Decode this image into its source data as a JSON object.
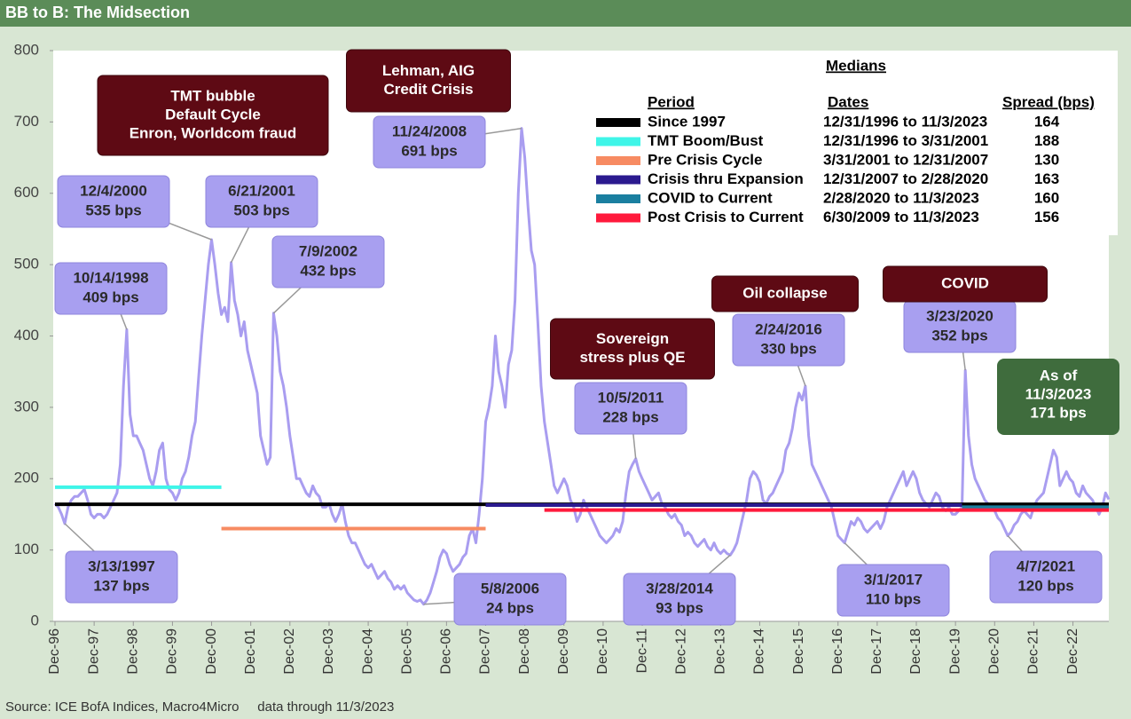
{
  "chart_data": {
    "type": "line",
    "title": "BB to B: The Midsection",
    "source": "Source: ICE BofA Indices, Macro4Micro     data through 11/3/2023",
    "xlim": [
      "1996-12",
      "2023-11"
    ],
    "xticks": [
      {
        "value": "1996-12",
        "label": "Dec-96"
      },
      {
        "value": "1997-12",
        "label": "Dec-97"
      },
      {
        "value": "1998-12",
        "label": "Dec-98"
      },
      {
        "value": "1999-12",
        "label": "Dec-99"
      },
      {
        "value": "2000-12",
        "label": "Dec-00"
      },
      {
        "value": "2001-12",
        "label": "Dec-01"
      },
      {
        "value": "2002-12",
        "label": "Dec-02"
      },
      {
        "value": "2003-12",
        "label": "Dec-03"
      },
      {
        "value": "2004-12",
        "label": "Dec-04"
      },
      {
        "value": "2005-12",
        "label": "Dec-05"
      },
      {
        "value": "2006-12",
        "label": "Dec-06"
      },
      {
        "value": "2007-12",
        "label": "Dec-07"
      },
      {
        "value": "2008-12",
        "label": "Dec-08"
      },
      {
        "value": "2009-12",
        "label": "Dec-09"
      },
      {
        "value": "2010-12",
        "label": "Dec-10"
      },
      {
        "value": "2011-12",
        "label": "Dec-11"
      },
      {
        "value": "2012-12",
        "label": "Dec-12"
      },
      {
        "value": "2013-12",
        "label": "Dec-13"
      },
      {
        "value": "2014-12",
        "label": "Dec-14"
      },
      {
        "value": "2015-12",
        "label": "Dec-15"
      },
      {
        "value": "2016-12",
        "label": "Dec-16"
      },
      {
        "value": "2017-12",
        "label": "Dec-17"
      },
      {
        "value": "2018-12",
        "label": "Dec-18"
      },
      {
        "value": "2019-12",
        "label": "Dec-19"
      },
      {
        "value": "2020-12",
        "label": "Dec-20"
      },
      {
        "value": "2021-12",
        "label": "Dec-21"
      },
      {
        "value": "2022-12",
        "label": "Dec-22"
      }
    ],
    "ylim": [
      0,
      800
    ],
    "yticks": [
      0,
      100,
      200,
      300,
      400,
      500,
      600,
      700,
      800
    ],
    "x": [
      "1996-12",
      "1997-01",
      "1997-02",
      "1997-03",
      "1997-04",
      "1997-05",
      "1997-06",
      "1997-07",
      "1997-08",
      "1997-09",
      "1997-10",
      "1997-11",
      "1997-12",
      "1998-01",
      "1998-02",
      "1998-03",
      "1998-04",
      "1998-05",
      "1998-06",
      "1998-07",
      "1998-08",
      "1998-09",
      "1998-10",
      "1998-11",
      "1998-12",
      "1999-01",
      "1999-02",
      "1999-03",
      "1999-04",
      "1999-05",
      "1999-06",
      "1999-07",
      "1999-08",
      "1999-09",
      "1999-10",
      "1999-11",
      "1999-12",
      "2000-01",
      "2000-02",
      "2000-03",
      "2000-04",
      "2000-05",
      "2000-06",
      "2000-07",
      "2000-08",
      "2000-09",
      "2000-10",
      "2000-11",
      "2000-12",
      "2001-01",
      "2001-02",
      "2001-03",
      "2001-04",
      "2001-05",
      "2001-06",
      "2001-07",
      "2001-08",
      "2001-09",
      "2001-10",
      "2001-11",
      "2001-12",
      "2002-01",
      "2002-02",
      "2002-03",
      "2002-04",
      "2002-05",
      "2002-06",
      "2002-07",
      "2002-08",
      "2002-09",
      "2002-10",
      "2002-11",
      "2002-12",
      "2003-01",
      "2003-02",
      "2003-03",
      "2003-04",
      "2003-05",
      "2003-06",
      "2003-07",
      "2003-08",
      "2003-09",
      "2003-10",
      "2003-11",
      "2003-12",
      "2004-01",
      "2004-02",
      "2004-03",
      "2004-04",
      "2004-05",
      "2004-06",
      "2004-07",
      "2004-08",
      "2004-09",
      "2004-10",
      "2004-11",
      "2004-12",
      "2005-01",
      "2005-02",
      "2005-03",
      "2005-04",
      "2005-05",
      "2005-06",
      "2005-07",
      "2005-08",
      "2005-09",
      "2005-10",
      "2005-11",
      "2005-12",
      "2006-01",
      "2006-02",
      "2006-03",
      "2006-04",
      "2006-05",
      "2006-06",
      "2006-07",
      "2006-08",
      "2006-09",
      "2006-10",
      "2006-11",
      "2006-12",
      "2007-01",
      "2007-02",
      "2007-03",
      "2007-04",
      "2007-05",
      "2007-06",
      "2007-07",
      "2007-08",
      "2007-09",
      "2007-10",
      "2007-11",
      "2007-12",
      "2008-01",
      "2008-02",
      "2008-03",
      "2008-04",
      "2008-05",
      "2008-06",
      "2008-07",
      "2008-08",
      "2008-09",
      "2008-10",
      "2008-11",
      "2008-12",
      "2009-01",
      "2009-02",
      "2009-03",
      "2009-04",
      "2009-05",
      "2009-06",
      "2009-07",
      "2009-08",
      "2009-09",
      "2009-10",
      "2009-11",
      "2009-12",
      "2010-01",
      "2010-02",
      "2010-03",
      "2010-04",
      "2010-05",
      "2010-06",
      "2010-07",
      "2010-08",
      "2010-09",
      "2010-10",
      "2010-11",
      "2010-12",
      "2011-01",
      "2011-02",
      "2011-03",
      "2011-04",
      "2011-05",
      "2011-06",
      "2011-07",
      "2011-08",
      "2011-09",
      "2011-10",
      "2011-11",
      "2011-12",
      "2012-01",
      "2012-02",
      "2012-03",
      "2012-04",
      "2012-05",
      "2012-06",
      "2012-07",
      "2012-08",
      "2012-09",
      "2012-10",
      "2012-11",
      "2012-12",
      "2013-01",
      "2013-02",
      "2013-03",
      "2013-04",
      "2013-05",
      "2013-06",
      "2013-07",
      "2013-08",
      "2013-09",
      "2013-10",
      "2013-11",
      "2013-12",
      "2014-01",
      "2014-02",
      "2014-03",
      "2014-04",
      "2014-05",
      "2014-06",
      "2014-07",
      "2014-08",
      "2014-09",
      "2014-10",
      "2014-11",
      "2014-12",
      "2015-01",
      "2015-02",
      "2015-03",
      "2015-04",
      "2015-05",
      "2015-06",
      "2015-07",
      "2015-08",
      "2015-09",
      "2015-10",
      "2015-11",
      "2015-12",
      "2016-01",
      "2016-02",
      "2016-03",
      "2016-04",
      "2016-05",
      "2016-06",
      "2016-07",
      "2016-08",
      "2016-09",
      "2016-10",
      "2016-11",
      "2016-12",
      "2017-01",
      "2017-02",
      "2017-03",
      "2017-04",
      "2017-05",
      "2017-06",
      "2017-07",
      "2017-08",
      "2017-09",
      "2017-10",
      "2017-11",
      "2017-12",
      "2018-01",
      "2018-02",
      "2018-03",
      "2018-04",
      "2018-05",
      "2018-06",
      "2018-07",
      "2018-08",
      "2018-09",
      "2018-10",
      "2018-11",
      "2018-12",
      "2019-01",
      "2019-02",
      "2019-03",
      "2019-04",
      "2019-05",
      "2019-06",
      "2019-07",
      "2019-08",
      "2019-09",
      "2019-10",
      "2019-11",
      "2019-12",
      "2020-01",
      "2020-02",
      "2020-03",
      "2020-04",
      "2020-05",
      "2020-06",
      "2020-07",
      "2020-08",
      "2020-09",
      "2020-10",
      "2020-11",
      "2020-12",
      "2021-01",
      "2021-02",
      "2021-03",
      "2021-04",
      "2021-05",
      "2021-06",
      "2021-07",
      "2021-08",
      "2021-09",
      "2021-10",
      "2021-11",
      "2021-12",
      "2022-01",
      "2022-02",
      "2022-03",
      "2022-04",
      "2022-05",
      "2022-06",
      "2022-07",
      "2022-08",
      "2022-09",
      "2022-10",
      "2022-11",
      "2022-12",
      "2023-01",
      "2023-02",
      "2023-03",
      "2023-04",
      "2023-05",
      "2023-06",
      "2023-07",
      "2023-08",
      "2023-09",
      "2023-10",
      "2023-11"
    ],
    "series": [
      {
        "color": "#a99df0",
        "values": [
          165,
          160,
          150,
          137,
          160,
          170,
          175,
          175,
          180,
          185,
          170,
          150,
          145,
          150,
          150,
          145,
          150,
          160,
          170,
          180,
          220,
          330,
          409,
          290,
          260,
          260,
          250,
          240,
          220,
          200,
          190,
          210,
          240,
          250,
          200,
          185,
          180,
          170,
          180,
          200,
          210,
          230,
          260,
          280,
          340,
          400,
          450,
          500,
          535,
          500,
          460,
          430,
          440,
          420,
          503,
          450,
          430,
          400,
          420,
          380,
          360,
          340,
          320,
          260,
          240,
          220,
          230,
          432,
          400,
          350,
          330,
          300,
          260,
          230,
          200,
          200,
          190,
          180,
          175,
          190,
          180,
          175,
          160,
          160,
          165,
          150,
          140,
          150,
          165,
          140,
          120,
          110,
          110,
          100,
          90,
          80,
          75,
          80,
          70,
          60,
          65,
          70,
          60,
          55,
          45,
          50,
          45,
          50,
          40,
          35,
          30,
          28,
          30,
          24,
          30,
          40,
          55,
          70,
          90,
          100,
          95,
          80,
          70,
          75,
          80,
          90,
          95,
          120,
          130,
          110,
          150,
          200,
          280,
          300,
          330,
          400,
          350,
          330,
          300,
          360,
          380,
          450,
          600,
          691,
          650,
          580,
          520,
          500,
          420,
          330,
          280,
          250,
          220,
          190,
          180,
          190,
          200,
          190,
          170,
          160,
          140,
          150,
          170,
          160,
          150,
          140,
          130,
          120,
          115,
          110,
          115,
          120,
          130,
          125,
          140,
          180,
          210,
          220,
          228,
          210,
          200,
          190,
          180,
          170,
          175,
          180,
          165,
          160,
          150,
          145,
          150,
          140,
          135,
          120,
          125,
          120,
          110,
          105,
          110,
          115,
          105,
          100,
          110,
          100,
          95,
          100,
          95,
          93,
          100,
          110,
          130,
          150,
          170,
          200,
          210,
          205,
          195,
          170,
          165,
          175,
          180,
          190,
          200,
          210,
          240,
          250,
          270,
          300,
          320,
          310,
          330,
          260,
          220,
          210,
          200,
          190,
          180,
          170,
          160,
          140,
          120,
          115,
          110,
          125,
          140,
          135,
          145,
          140,
          130,
          125,
          130,
          135,
          140,
          130,
          140,
          160,
          170,
          180,
          190,
          200,
          210,
          190,
          200,
          210,
          200,
          180,
          170,
          165,
          160,
          170,
          180,
          175,
          160,
          155,
          160,
          150,
          150,
          155,
          160,
          352,
          260,
          220,
          200,
          190,
          180,
          170,
          165,
          160,
          155,
          145,
          140,
          130,
          120,
          125,
          135,
          140,
          150,
          155,
          150,
          145,
          160,
          170,
          175,
          180,
          200,
          220,
          240,
          230,
          190,
          200,
          210,
          200,
          195,
          180,
          175,
          190,
          180,
          175,
          170,
          160,
          150,
          160,
          180,
          171
        ]
      }
    ],
    "legend_title": "Medians",
    "legend_headers": [
      "Period",
      "Dates",
      "Spread (bps)"
    ],
    "medians": [
      {
        "name": "Since 1997",
        "dates": "12/31/1996 to 11/3/2023",
        "value": 164,
        "color": "#000000",
        "start": "1996-12",
        "end": "2023-11"
      },
      {
        "name": "TMT Boom/Bust",
        "dates": "12/31/1996 to 3/31/2001",
        "value": 188,
        "color": "#3ff5e8",
        "start": "1996-12",
        "end": "2001-03"
      },
      {
        "name": "Pre Crisis Cycle",
        "dates": "3/31/2001 to 12/31/2007",
        "value": 130,
        "color": "#f78b62",
        "start": "2001-03",
        "end": "2007-12"
      },
      {
        "name": "Crisis thru Expansion",
        "dates": "12/31/2007 to 2/28/2020",
        "value": 163,
        "color": "#2b1a8f",
        "start": "2007-12",
        "end": "2020-02"
      },
      {
        "name": "COVID to Current",
        "dates": "2/28/2020 to 11/3/2023",
        "value": 160,
        "color": "#1a7fa0",
        "start": "2020-02",
        "end": "2023-11"
      },
      {
        "name": "Post Crisis to Current",
        "dates": "6/30/2009 to 11/3/2023",
        "value": 156,
        "color": "#ff1a3c",
        "start": "2009-06",
        "end": "2023-11"
      }
    ],
    "callouts": [
      {
        "date": "10/14/1998",
        "value": 409,
        "value_label": "409 bps",
        "x": "1998-10"
      },
      {
        "date": "12/4/2000",
        "value": 535,
        "value_label": "535 bps",
        "x": "2000-12"
      },
      {
        "date": "6/21/2001",
        "value": 503,
        "value_label": "503 bps",
        "x": "2001-06"
      },
      {
        "date": "7/9/2002",
        "value": 432,
        "value_label": "432 bps",
        "x": "2002-07"
      },
      {
        "date": "11/24/2008",
        "value": 691,
        "value_label": "691 bps",
        "x": "2008-11"
      },
      {
        "date": "3/13/1997",
        "value": 137,
        "value_label": "137 bps",
        "x": "1997-03"
      },
      {
        "date": "5/8/2006",
        "value": 24,
        "value_label": "24 bps",
        "x": "2006-05"
      },
      {
        "date": "10/5/2011",
        "value": 228,
        "value_label": "228 bps",
        "x": "2011-10"
      },
      {
        "date": "3/28/2014",
        "value": 93,
        "value_label": "93 bps",
        "x": "2014-03"
      },
      {
        "date": "2/24/2016",
        "value": 330,
        "value_label": "330 bps",
        "x": "2016-02"
      },
      {
        "date": "3/1/2017",
        "value": 110,
        "value_label": "110 bps",
        "x": "2017-02"
      },
      {
        "date": "3/23/2020",
        "value": 352,
        "value_label": "352 bps",
        "x": "2020-03"
      },
      {
        "date": "4/7/2021",
        "value": 120,
        "value_label": "120 bps",
        "x": "2021-04"
      }
    ],
    "events": [
      [
        "TMT bubble",
        "Default Cycle",
        "Enron, Worldcom fraud"
      ],
      [
        "Lehman, AIG",
        "Credit Crisis"
      ],
      [
        "Sovereign",
        "stress plus QE"
      ],
      [
        "Oil collapse"
      ],
      [
        "COVID"
      ]
    ],
    "as_of": [
      "As of",
      "11/3/2023",
      "171 bps"
    ]
  }
}
